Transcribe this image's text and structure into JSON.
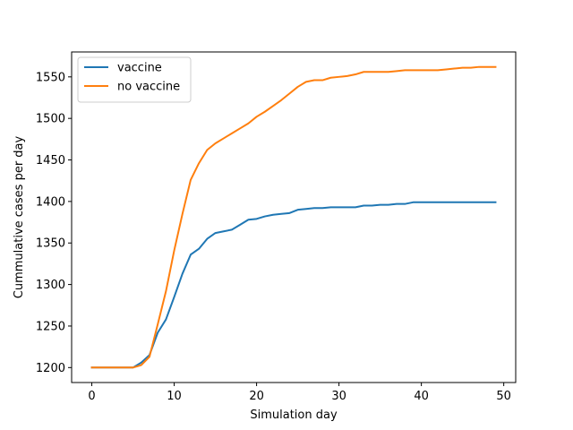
{
  "chart_data": {
    "type": "line",
    "title": "",
    "xlabel": "Simulation day",
    "ylabel": "Cummulative cases per day",
    "xlim": [
      -2.45,
      51.45
    ],
    "ylim": [
      1182,
      1580
    ],
    "xticks": [
      0,
      10,
      20,
      30,
      40,
      50
    ],
    "yticks": [
      1200,
      1250,
      1300,
      1350,
      1400,
      1450,
      1500,
      1550
    ],
    "grid": false,
    "legend_position": "upper-left",
    "series": [
      {
        "name": "vaccine",
        "color": "#1f77b4",
        "x": [
          0,
          1,
          2,
          3,
          4,
          5,
          6,
          7,
          8,
          9,
          10,
          11,
          12,
          13,
          14,
          15,
          16,
          17,
          18,
          19,
          20,
          21,
          22,
          23,
          24,
          25,
          26,
          27,
          28,
          29,
          30,
          31,
          32,
          33,
          34,
          35,
          36,
          37,
          38,
          39,
          40,
          41,
          42,
          43,
          44,
          45,
          46,
          47,
          48,
          49
        ],
        "y": [
          1200,
          1200,
          1200,
          1200,
          1200,
          1200,
          1206,
          1215,
          1242,
          1258,
          1285,
          1313,
          1336,
          1343,
          1355,
          1362,
          1364,
          1366,
          1372,
          1378,
          1379,
          1382,
          1384,
          1385,
          1386,
          1390,
          1391,
          1392,
          1392,
          1393,
          1393,
          1393,
          1393,
          1395,
          1395,
          1396,
          1396,
          1397,
          1397,
          1399,
          1399,
          1399,
          1399,
          1399,
          1399,
          1399,
          1399,
          1399,
          1399,
          1399
        ]
      },
      {
        "name": "no vaccine",
        "color": "#ff7f0e",
        "x": [
          0,
          1,
          2,
          3,
          4,
          5,
          6,
          7,
          8,
          9,
          10,
          11,
          12,
          13,
          14,
          15,
          16,
          17,
          18,
          19,
          20,
          21,
          22,
          23,
          24,
          25,
          26,
          27,
          28,
          29,
          30,
          31,
          32,
          33,
          34,
          35,
          36,
          37,
          38,
          39,
          40,
          41,
          42,
          43,
          44,
          45,
          46,
          47,
          48,
          49
        ],
        "y": [
          1200,
          1200,
          1200,
          1200,
          1200,
          1200,
          1203,
          1213,
          1252,
          1292,
          1341,
          1385,
          1426,
          1446,
          1462,
          1470,
          1476,
          1482,
          1488,
          1494,
          1502,
          1508,
          1515,
          1522,
          1530,
          1538,
          1544,
          1546,
          1546,
          1549,
          1550,
          1551,
          1553,
          1556,
          1556,
          1556,
          1556,
          1557,
          1558,
          1558,
          1558,
          1558,
          1558,
          1559,
          1560,
          1561,
          1561,
          1562,
          1562,
          1562
        ]
      }
    ]
  }
}
